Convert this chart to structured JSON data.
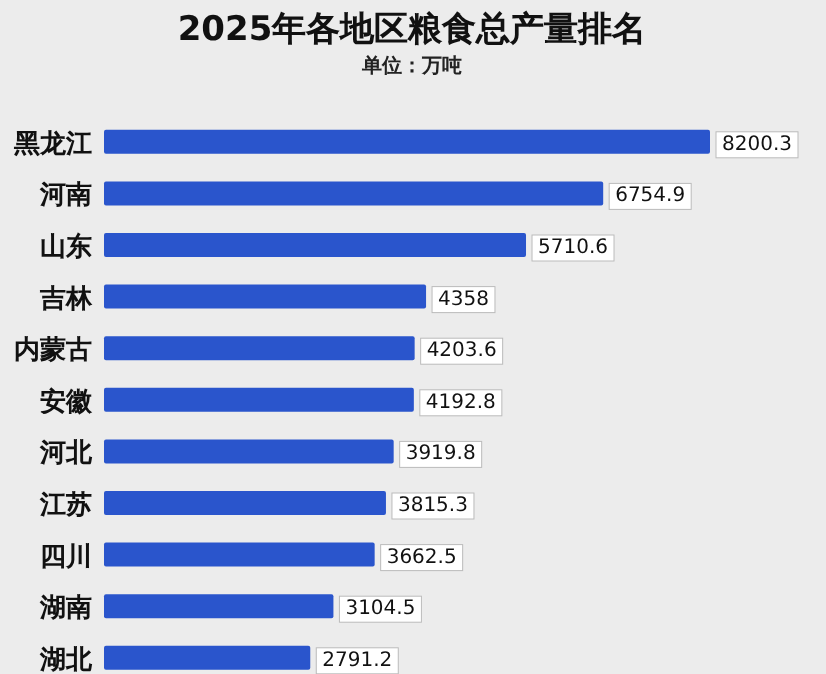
{
  "chart_data": {
    "type": "bar",
    "orientation": "horizontal",
    "title": "2025年各地区粮食总产量排名",
    "subtitle": "单位：万吨",
    "categories": [
      "黑龙江",
      "河南",
      "山东",
      "吉林",
      "内蒙古",
      "安徽",
      "河北",
      "江苏",
      "四川",
      "湖南",
      "湖北"
    ],
    "values": [
      8200.3,
      6754.9,
      5710.6,
      4358,
      4203.6,
      4192.8,
      3919.8,
      3815.3,
      3662.5,
      3104.5,
      2791.2
    ],
    "color": "#2a55cc",
    "data_labels": true
  }
}
